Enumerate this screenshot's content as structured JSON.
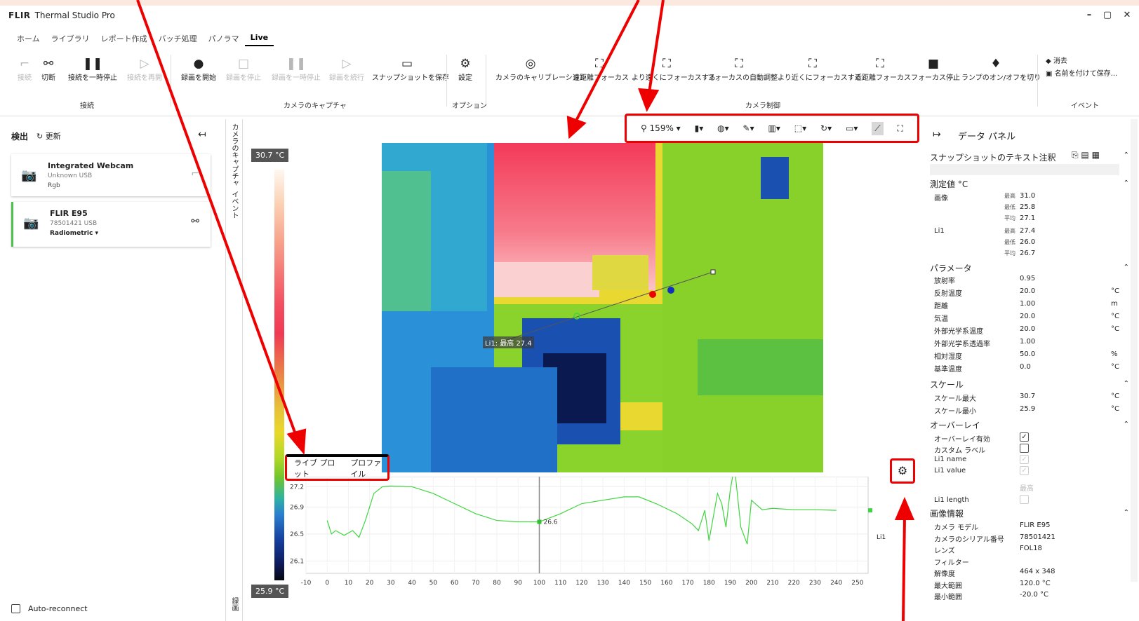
{
  "app": {
    "logo": "FLIR",
    "title": "Thermal Studio Pro",
    "window_controls": [
      "–",
      "▢",
      "✕"
    ]
  },
  "tabs": [
    "ホーム",
    "ライブラリ",
    "レポート作成",
    "バッチ処理",
    "パノラマ",
    "Live"
  ],
  "ribbon": {
    "connect": [
      {
        "label": "接続",
        "icon": "plug-icon",
        "enabled": false
      },
      {
        "label": "切断",
        "icon": "unplug-icon",
        "enabled": true
      },
      {
        "label": "接続を一時停止",
        "icon": "pause-icon",
        "enabled": true
      },
      {
        "label": "接続を再開",
        "icon": "play-icon",
        "enabled": false
      }
    ],
    "capture": [
      {
        "label": "録画を開始",
        "icon": "record-icon",
        "enabled": true
      },
      {
        "label": "録画を停止",
        "icon": "stop-icon",
        "enabled": false
      },
      {
        "label": "録画を一時停止",
        "icon": "pause-icon",
        "enabled": false
      },
      {
        "label": "録画を続行",
        "icon": "play-icon",
        "enabled": false
      },
      {
        "label": "スナップショットを保存",
        "icon": "snapshot-icon",
        "enabled": true
      }
    ],
    "options": [
      {
        "label": "設定",
        "icon": "gear-icon",
        "enabled": true
      }
    ],
    "camera": [
      {
        "label": "カメラのキャリブレーション",
        "icon": "calibrate-icon"
      },
      {
        "label": "遠距離フォーカス",
        "icon": "focus-far-icon"
      },
      {
        "label": "より遠くにフォーカスする",
        "icon": "focus-farther-icon"
      },
      {
        "label": "フォーカスの自動調整",
        "icon": "autofocus-icon"
      },
      {
        "label": "より近くにフォーカスする",
        "icon": "focus-nearer-icon"
      },
      {
        "label": "近距離フォーカス",
        "icon": "focus-near-icon"
      },
      {
        "label": "フォーカス停止",
        "icon": "focus-stop-icon"
      },
      {
        "label": "ランプのオン/オフを切り",
        "icon": "lamp-icon"
      }
    ],
    "event": [
      {
        "label": "消去",
        "icon": "eraser-icon"
      },
      {
        "label": "名前を付けて保存...",
        "icon": "save-icon"
      }
    ],
    "groups": {
      "connect": "接続",
      "capture": "カメラのキャプチャ",
      "options": "オプション",
      "camera": "カメラ制御",
      "event": "イベント"
    }
  },
  "left": {
    "title": "検出",
    "refresh": "更新",
    "collapse_icon": "collapse-left-icon",
    "devices": [
      {
        "name": "Integrated Webcam",
        "line1": "Unknown USB",
        "line2": "Rgb"
      },
      {
        "name": "FLIR E95",
        "line1": "78501421 USB",
        "line2": "Radiometric ▾"
      }
    ],
    "auto_reconnect": "Auto-reconnect"
  },
  "vtabs": {
    "capture": "カメラのキャプチャ",
    "event": "イベント",
    "record": "録画"
  },
  "scale": {
    "max": "30.7 °C",
    "min": "25.9 °C"
  },
  "imagetools": {
    "zoom": "159%"
  },
  "overlay": {
    "line_label": "Li1: 最高 27.4"
  },
  "plot": {
    "tabs": [
      "ライブ プロット",
      "プロファイル"
    ],
    "marker_value": "26.6",
    "series_label": "Li1"
  },
  "chart_data": {
    "type": "line",
    "title": "",
    "xlabel": "",
    "ylabel": "",
    "xlim": [
      -10,
      255
    ],
    "ylim": [
      26.0,
      27.35
    ],
    "xticks": [
      -10,
      0,
      10,
      20,
      30,
      40,
      50,
      60,
      70,
      80,
      90,
      100,
      110,
      120,
      130,
      140,
      150,
      160,
      170,
      180,
      190,
      200,
      210,
      220,
      230,
      240,
      250
    ],
    "yticks": [
      27.2,
      26.9,
      26.5,
      26.1
    ],
    "series": [
      {
        "name": "Li1",
        "color": "#3fd53f",
        "x": [
          0,
          2,
          4,
          8,
          12,
          15,
          18,
          22,
          26,
          30,
          40,
          50,
          60,
          70,
          80,
          90,
          100,
          110,
          120,
          130,
          140,
          147,
          155,
          165,
          172,
          175,
          178,
          180,
          184,
          186,
          188,
          190,
          192,
          195,
          198,
          200,
          205,
          210,
          220,
          230,
          240
        ],
        "y": [
          26.7,
          26.5,
          26.55,
          26.48,
          26.55,
          26.45,
          26.7,
          27.1,
          27.2,
          27.21,
          27.2,
          27.1,
          26.95,
          26.8,
          26.7,
          26.68,
          26.68,
          26.8,
          26.95,
          27.0,
          27.05,
          27.05,
          26.95,
          26.8,
          26.65,
          26.55,
          26.85,
          26.4,
          27.1,
          26.95,
          26.6,
          27.15,
          27.5,
          26.6,
          26.35,
          27.0,
          26.86,
          26.88,
          26.86,
          26.86,
          26.85
        ]
      }
    ]
  },
  "panel": {
    "title": "データ パネル",
    "snapshot_note": "スナップショットのテキスト注釈",
    "measure_title": "測定値 °C",
    "measure": [
      {
        "name": "画像",
        "rows": [
          [
            "最高",
            "31.0"
          ],
          [
            "最低",
            "25.8"
          ],
          [
            "平均",
            "27.1"
          ]
        ]
      },
      {
        "name": "Li1",
        "rows": [
          [
            "最高",
            "27.4"
          ],
          [
            "最低",
            "26.0"
          ],
          [
            "平均",
            "26.7"
          ]
        ]
      }
    ],
    "param_title": "パラメータ",
    "params": [
      [
        "放射率",
        "0.95",
        ""
      ],
      [
        "反射温度",
        "20.0",
        "°C"
      ],
      [
        "距離",
        "1.00",
        "m"
      ],
      [
        "気温",
        "20.0",
        "°C"
      ],
      [
        "外部光学系温度",
        "20.0",
        "°C"
      ],
      [
        "外部光学系透過率",
        "1.00",
        ""
      ],
      [
        "相対湿度",
        "50.0",
        "%"
      ],
      [
        "基準温度",
        "0.0",
        "°C"
      ]
    ],
    "scale_title": "スケール",
    "scale": [
      [
        "スケール最大",
        "30.7",
        "°C"
      ],
      [
        "スケール最小",
        "25.9",
        "°C"
      ]
    ],
    "overlay_title": "オーバーレイ",
    "overlay": [
      {
        "label": "オーバーレイ有効",
        "checked": true,
        "enabled": true
      },
      {
        "label": "カスタム ラベル",
        "checked": false,
        "enabled": true
      },
      {
        "label": "Li1 name",
        "checked": true,
        "enabled": false
      },
      {
        "label": "Li1 value",
        "checked": true,
        "enabled": false
      }
    ],
    "overlay_select": "最高",
    "overlay_length": "Li1 length",
    "info_title": "画像情報",
    "info": [
      [
        "カメラ モデル",
        "FLIR E95"
      ],
      [
        "カメラのシリアル番号",
        "78501421"
      ],
      [
        "レンズ",
        "FOL18"
      ],
      [
        "フィルター",
        ""
      ],
      [
        "解像度",
        "464 x 348"
      ],
      [
        "最大範囲",
        "120.0 °C"
      ],
      [
        "最小範囲",
        "-20.0 °C"
      ]
    ]
  }
}
